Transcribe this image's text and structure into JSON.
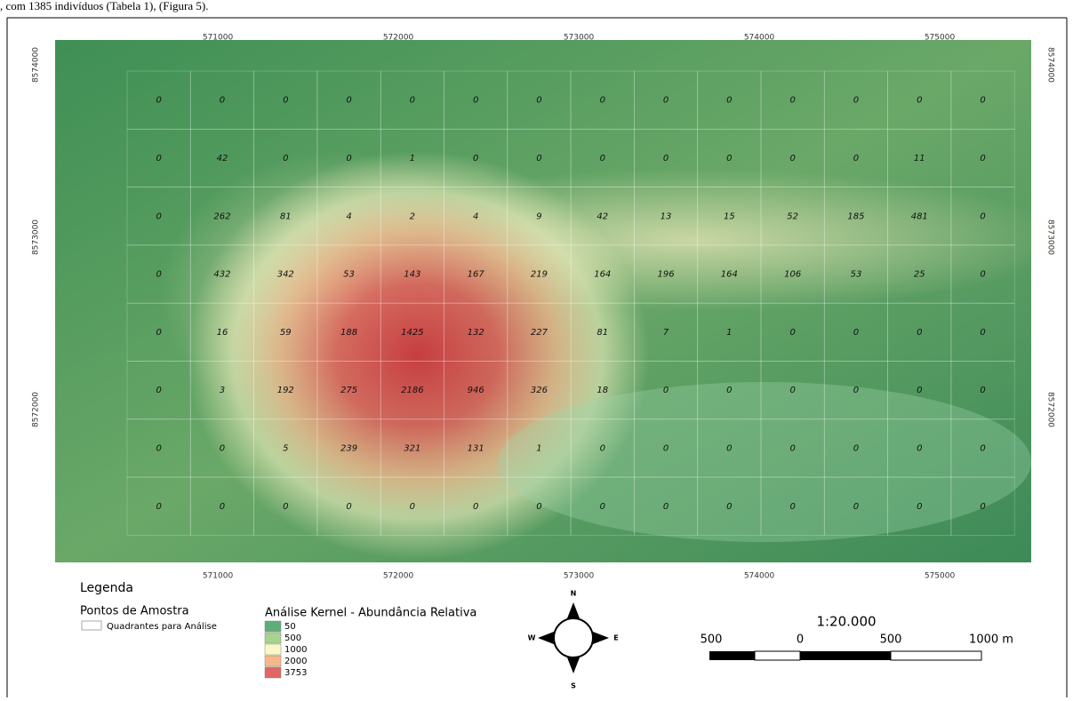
{
  "caption": ", com 1385 indivíduos (Tabela 1), (Figura 5).",
  "map": {
    "x_labels": [
      "571000",
      "572000",
      "573000",
      "574000",
      "575000"
    ],
    "y_labels": [
      "8574000",
      "8573000",
      "8572000"
    ],
    "grid": {
      "rows": [
        [
          0,
          0,
          0,
          0,
          0,
          0,
          0,
          0,
          0,
          0,
          0,
          0,
          0,
          0
        ],
        [
          0,
          42,
          0,
          0,
          1,
          0,
          0,
          0,
          0,
          0,
          0,
          0,
          11,
          0
        ],
        [
          0,
          262,
          81,
          4,
          2,
          4,
          9,
          42,
          13,
          15,
          52,
          185,
          481,
          0
        ],
        [
          0,
          432,
          342,
          53,
          143,
          167,
          219,
          164,
          196,
          164,
          106,
          53,
          25,
          0
        ],
        [
          0,
          16,
          59,
          188,
          1425,
          132,
          227,
          81,
          7,
          1,
          0,
          0,
          0,
          0
        ],
        [
          0,
          3,
          192,
          275,
          2186,
          946,
          326,
          18,
          0,
          0,
          0,
          0,
          0,
          0
        ],
        [
          0,
          0,
          5,
          239,
          321,
          131,
          1,
          0,
          0,
          0,
          0,
          0,
          0,
          0
        ],
        [
          0,
          0,
          0,
          0,
          0,
          0,
          0,
          0,
          0,
          0,
          0,
          0,
          0,
          0
        ]
      ]
    }
  },
  "legend": {
    "title": "Legenda",
    "points": "Pontos de Amostra",
    "quadrants": "Quadrantes para Análise",
    "kernel_title": "Análise Kernel - Abundância Relativa",
    "classes": [
      {
        "label": "50",
        "color": "#5fae7a"
      },
      {
        "label": "500",
        "color": "#a6d38d"
      },
      {
        "label": "1000",
        "color": "#f9f7c6"
      },
      {
        "label": "2000",
        "color": "#f5b88a"
      },
      {
        "label": "3753",
        "color": "#e06666"
      }
    ]
  },
  "compass": {
    "n": "N",
    "s": "S",
    "e": "E",
    "w": "W"
  },
  "scale": {
    "ratio": "1:20.000",
    "labels": [
      "500",
      "0",
      "500",
      "1000 m"
    ]
  }
}
